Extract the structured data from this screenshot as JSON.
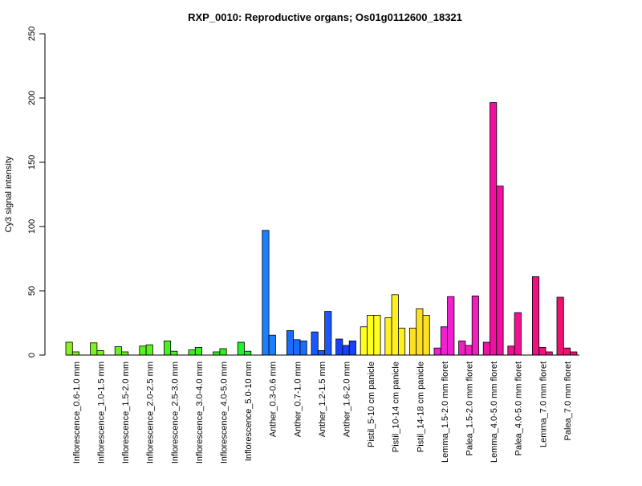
{
  "chart_data": {
    "type": "bar",
    "title": "RXP_0010: Reproductive organs; Os01g0112600_18321",
    "ylabel": "Cy3 signal intensity",
    "xlabel": "",
    "ylim": [
      0,
      250
    ],
    "yticks": [
      0,
      50,
      100,
      150,
      200,
      250
    ],
    "categories": [
      "Inflorescence_0.6-1.0 mm",
      "Inflorescence_1.0-1.5 mm",
      "Inflorescence_1.5-2.0 mm",
      "Inflorescence_2.0-2.5 mm",
      "Inflorescence_2.5-3.0 mm",
      "Inflorescence_3.0-4.0 mm",
      "Inflorescence_4.0-5.0 mm",
      "Inflorescence_5.0-10 mm",
      "Anther_0.3-0.6 mm",
      "Anther_0.7-1.0 mm",
      "Anther_1.2-1.5 mm",
      "Anther_1.6-2.0 mm",
      "Pistil_5-10 cm panicle",
      "Pistil_10-14 cm panicle",
      "Pistil_14-18 cm panicle",
      "Lemma_1.5-2.0 mm floret",
      "Palea_1.5-2.0 mm floret",
      "Lemma_4.0-5.0 mm floret",
      "Palea_4.0-5.0 mm floret",
      "Lemma_7.0 mm floret",
      "Palea_7.0 mm floret"
    ],
    "groups": [
      {
        "color": "#8cf020",
        "values": [
          10,
          2.5
        ]
      },
      {
        "color": "#7cf020",
        "values": [
          9.5,
          3.5
        ]
      },
      {
        "color": "#6cf020",
        "values": [
          6.5,
          2.5
        ]
      },
      {
        "color": "#5cf020",
        "values": [
          7,
          8
        ]
      },
      {
        "color": "#4cf020",
        "values": [
          11,
          3
        ]
      },
      {
        "color": "#3cf020",
        "values": [
          4,
          6
        ]
      },
      {
        "color": "#2cf020",
        "values": [
          2.5,
          5
        ]
      },
      {
        "color": "#20f030",
        "values": [
          10,
          3
        ]
      },
      {
        "color": "#1a80ff",
        "values": [
          97,
          15.5
        ]
      },
      {
        "color": "#1a6cff",
        "values": [
          19,
          12,
          11
        ]
      },
      {
        "color": "#1a58ff",
        "values": [
          18,
          3.5,
          34
        ]
      },
      {
        "color": "#1a40ff",
        "values": [
          12.5,
          7.5,
          11
        ]
      },
      {
        "color": "#ffff20",
        "values": [
          22,
          31,
          31
        ]
      },
      {
        "color": "#fff020",
        "values": [
          29,
          47,
          21
        ]
      },
      {
        "color": "#ffe020",
        "values": [
          21,
          36,
          31
        ]
      },
      {
        "color": "#f020d0",
        "values": [
          5.5,
          22,
          45.5
        ]
      },
      {
        "color": "#f020c0",
        "values": [
          11,
          7.5,
          46
        ]
      },
      {
        "color": "#f010a0",
        "values": [
          10,
          196.5,
          131.5
        ]
      },
      {
        "color": "#f01090",
        "values": [
          7,
          33
        ]
      },
      {
        "color": "#f01080",
        "values": [
          61,
          6,
          2.5
        ]
      },
      {
        "color": "#f01070",
        "values": [
          45,
          5.5,
          2.5
        ]
      }
    ]
  }
}
